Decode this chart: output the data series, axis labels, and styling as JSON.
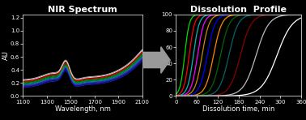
{
  "background_color": "#000000",
  "left_panel": {
    "title": "NIR Spectrum",
    "xlabel": "Wavelength, nm",
    "ylabel": "AU",
    "xlim": [
      1100,
      2100
    ],
    "ylim": [
      0.0,
      1.25
    ],
    "yticks": [
      0.0,
      0.2,
      0.4,
      0.6,
      0.8,
      1.0,
      1.2
    ],
    "xticks": [
      1100,
      1300,
      1500,
      1700,
      1900,
      2100
    ],
    "colors": [
      "#2222cc",
      "#1111aa",
      "#3333dd",
      "#4444bb",
      "#00aaaa",
      "#008888",
      "#00aa00",
      "#008800",
      "#ff0000",
      "#cc0000",
      "#ffffff",
      "#bbbbbb"
    ],
    "n_curves": 12
  },
  "right_panel": {
    "title": "Dissolution  Profile",
    "xlabel": "Dissolution time, min",
    "xlim": [
      0,
      360
    ],
    "ylim": [
      0,
      100
    ],
    "yticks": [
      0,
      20,
      40,
      60,
      80,
      100
    ],
    "xticks": [
      0,
      60,
      120,
      180,
      240,
      300,
      360
    ],
    "colors": [
      "#00dd00",
      "#ff0000",
      "#00bbbb",
      "#ff00ff",
      "#cc8800",
      "#0000ff",
      "#ff8800",
      "#006600",
      "#006666",
      "#880000",
      "#bbbbbb",
      "#ffffff"
    ],
    "t50_values": [
      25,
      38,
      50,
      62,
      75,
      90,
      108,
      128,
      152,
      185,
      230,
      290
    ],
    "k_values": [
      0.15,
      0.13,
      0.12,
      0.11,
      0.1,
      0.09,
      0.085,
      0.08,
      0.075,
      0.065,
      0.055,
      0.045
    ]
  },
  "arrow_color": "#999999",
  "title_fontsize": 8,
  "label_fontsize": 6,
  "tick_fontsize": 5
}
